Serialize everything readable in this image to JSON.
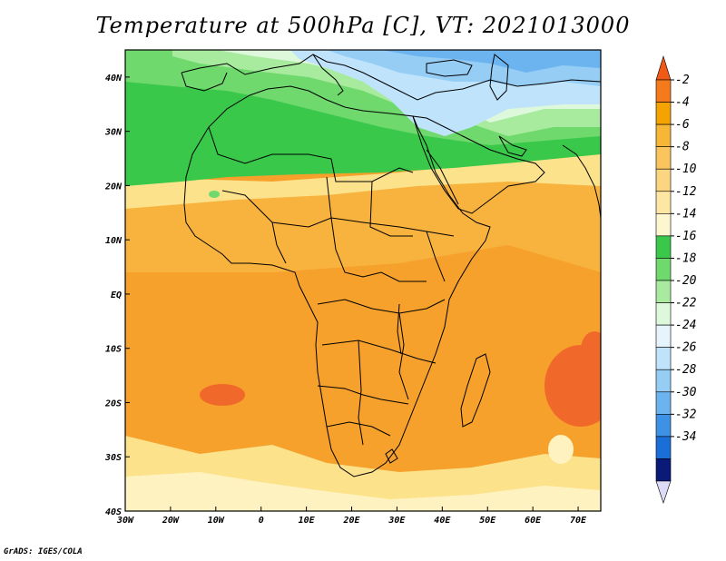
{
  "title": "Temperature at 500hPa [C], VT: 2021013000",
  "credit": "GrADS: IGES/COLA",
  "map": {
    "projection": "latlon",
    "lon_range": [
      -30,
      75
    ],
    "lat_range": [
      -40,
      45
    ],
    "lon_ticks": [
      {
        "value": -30,
        "label": "30W"
      },
      {
        "value": -20,
        "label": "20W"
      },
      {
        "value": -10,
        "label": "10W"
      },
      {
        "value": 0,
        "label": "0"
      },
      {
        "value": 10,
        "label": "10E"
      },
      {
        "value": 20,
        "label": "20E"
      },
      {
        "value": 30,
        "label": "30E"
      },
      {
        "value": 40,
        "label": "40E"
      },
      {
        "value": 50,
        "label": "50E"
      },
      {
        "value": 60,
        "label": "60E"
      },
      {
        "value": 70,
        "label": "70E"
      }
    ],
    "lat_ticks": [
      {
        "value": 40,
        "label": "40N"
      },
      {
        "value": 30,
        "label": "30N"
      },
      {
        "value": 20,
        "label": "20N"
      },
      {
        "value": 10,
        "label": "10N"
      },
      {
        "value": 0,
        "label": "EQ"
      },
      {
        "value": -10,
        "label": "10S"
      },
      {
        "value": -20,
        "label": "20S"
      },
      {
        "value": -30,
        "label": "30S"
      },
      {
        "value": -40,
        "label": "40S"
      }
    ]
  },
  "colorbar": {
    "levels": [
      {
        "label": "-2",
        "color": "#f5a300"
      },
      {
        "label": "-4",
        "color": "#f7b635"
      },
      {
        "label": "-6",
        "color": "#f9c55c"
      },
      {
        "label": "-8",
        "color": "#fbd57f"
      },
      {
        "label": "-10",
        "color": "#fde7a3"
      },
      {
        "label": "-12",
        "color": "#fef6cf"
      },
      {
        "label": "-14",
        "color": "#39c84a"
      },
      {
        "label": "-16",
        "color": "#6fd96d"
      },
      {
        "label": "-18",
        "color": "#a8eb9e"
      },
      {
        "label": "-20",
        "color": "#ddf8db"
      },
      {
        "label": "-22",
        "color": "#e6f5fd"
      },
      {
        "label": "-24",
        "color": "#bfe3fb"
      },
      {
        "label": "-26",
        "color": "#95cdf5"
      },
      {
        "label": "-28",
        "color": "#6cb4ef"
      },
      {
        "label": "-30",
        "color": "#3e92e6"
      },
      {
        "label": "-32",
        "color": "#1a6ed8"
      },
      {
        "label": "-34",
        "color": "#0b41b8"
      }
    ],
    "top_triangle_color": "#f05a16",
    "top_band_color": "#f47a1c",
    "bottom_triangle_color": "#dcdcf8",
    "bottom_band_color": "#0a1a78"
  },
  "temperature_field": {
    "colors": {
      "orange_dark": "#f0692a",
      "orange": "#f5a12c",
      "orange_light": "#f8b33f",
      "yellow": "#fde28c",
      "pale_yellow": "#fef3c0",
      "green_dark": "#39c84a",
      "green": "#6fd96d",
      "green_light": "#a8eb9e",
      "pale_green": "#ddf8db",
      "pale_blue": "#e6f5fd",
      "blue_light": "#bfe3fb",
      "blue": "#95cdf5",
      "blue_mid": "#6cb4ef"
    }
  }
}
